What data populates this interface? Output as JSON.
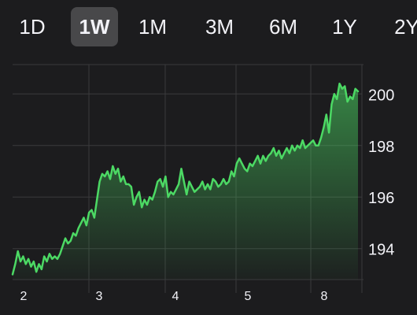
{
  "range_tabs": [
    {
      "label": "1D",
      "selected": false
    },
    {
      "label": "1W",
      "selected": true
    },
    {
      "label": "1M",
      "selected": false
    },
    {
      "label": "3M",
      "selected": false
    },
    {
      "label": "6M",
      "selected": false
    },
    {
      "label": "1Y",
      "selected": false
    },
    {
      "label": "2Y",
      "selected": false
    }
  ],
  "colors": {
    "background": "#1c1c1e",
    "line": "#4cd964",
    "grid": "#3a3a3c",
    "selected_tab": "#48484a"
  },
  "chart_data": {
    "type": "area",
    "title": "",
    "xlabel": "",
    "ylabel": "",
    "ylim": [
      192.8,
      201.2
    ],
    "yticks": [
      194,
      196,
      198,
      200
    ],
    "xticks": [
      "2",
      "3",
      "4",
      "5",
      "8"
    ],
    "grid": true,
    "series": [
      {
        "values": [
          193.0,
          193.4,
          193.9,
          193.5,
          193.7,
          193.4,
          193.6,
          193.3,
          193.5,
          193.1,
          193.4,
          193.2,
          193.7,
          193.5,
          193.8,
          193.6,
          193.7,
          193.6,
          193.8,
          194.1,
          194.4,
          194.2,
          194.3,
          194.6,
          194.5,
          194.8,
          195.0,
          195.2,
          194.9,
          195.4,
          195.5,
          195.2,
          195.9,
          196.6,
          196.9,
          196.8,
          197.0,
          196.7,
          197.2,
          196.9,
          197.1,
          196.6,
          196.8,
          196.5,
          196.5,
          196.4,
          195.7,
          196.0,
          196.2,
          195.6,
          195.9,
          195.7,
          196.0,
          195.9,
          196.2,
          196.6,
          196.7,
          196.4,
          196.8,
          196.0,
          196.2,
          196.1,
          196.3,
          196.5,
          197.1,
          196.6,
          196.1,
          196.6,
          196.4,
          196.2,
          196.3,
          196.4,
          196.6,
          196.3,
          196.5,
          196.3,
          196.7,
          196.6,
          196.4,
          196.5,
          196.7,
          196.5,
          196.6,
          197.0,
          196.8,
          197.3,
          197.5,
          197.3,
          197.1,
          197.0,
          197.3,
          197.2,
          197.4,
          197.6,
          197.3,
          197.6,
          197.4,
          197.6,
          197.7,
          197.9,
          197.6,
          197.8,
          197.5,
          197.7,
          197.9,
          197.7,
          198.0,
          197.8,
          198.0,
          197.9,
          198.2,
          197.9,
          198.0,
          198.1,
          198.2,
          198.0,
          198.0,
          198.3,
          198.7,
          199.2,
          198.5,
          199.6,
          200.0,
          199.8,
          200.4,
          200.2,
          200.3,
          199.7,
          199.9,
          199.8,
          200.2,
          200.1
        ]
      }
    ]
  }
}
